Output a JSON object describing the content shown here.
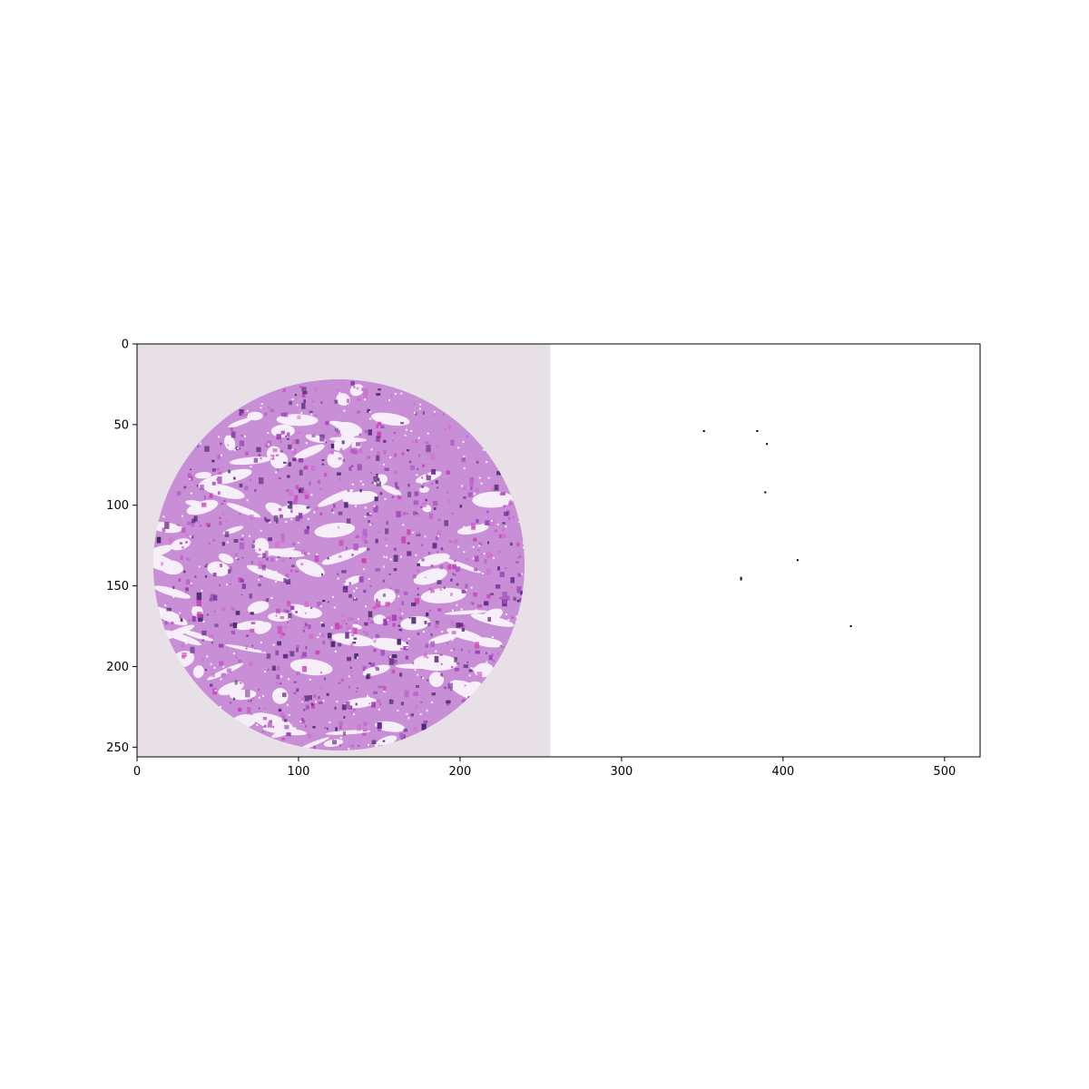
{
  "chart_data": {
    "type": "image",
    "xlim": [
      0,
      522
    ],
    "ylim": [
      256,
      0
    ],
    "x_ticks": [
      0,
      100,
      200,
      300,
      400,
      500
    ],
    "y_ticks": [
      0,
      50,
      100,
      150,
      200,
      250
    ],
    "x_tick_labels": [
      "0",
      "100",
      "200",
      "300",
      "400",
      "500"
    ],
    "y_tick_labels": [
      "0",
      "50",
      "100",
      "150",
      "200",
      "250"
    ],
    "left_panel": {
      "description": "H&E stained tissue core",
      "x_range": [
        0,
        256
      ],
      "background_color": "#e7e1e7",
      "tissue_center": [
        125,
        137
      ],
      "tissue_radius": 115,
      "stain_colors": [
        "#b060c8",
        "#9a3fb8",
        "#6a2c8a",
        "#d070d0",
        "#cc44bb",
        "#4a2a70"
      ]
    },
    "right_panel": {
      "x_range": [
        256,
        522
      ],
      "background_color": "#ffffff",
      "points": [
        {
          "x": 351,
          "y": 54
        },
        {
          "x": 384,
          "y": 54
        },
        {
          "x": 390,
          "y": 62
        },
        {
          "x": 389,
          "y": 92
        },
        {
          "x": 409,
          "y": 134
        },
        {
          "x": 374,
          "y": 145
        },
        {
          "x": 374,
          "y": 146
        },
        {
          "x": 442,
          "y": 175
        }
      ]
    }
  }
}
